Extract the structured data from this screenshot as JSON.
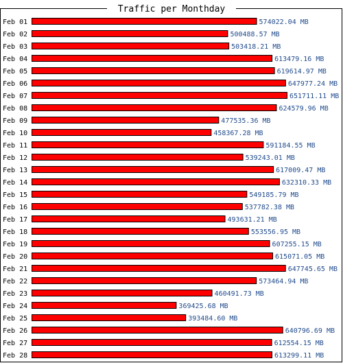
{
  "chart_data": {
    "type": "bar",
    "orientation": "horizontal",
    "title": "Traffic per Monthday",
    "unit": "MB",
    "categories": [
      "Feb 01",
      "Feb 02",
      "Feb 03",
      "Feb 04",
      "Feb 05",
      "Feb 06",
      "Feb 07",
      "Feb 08",
      "Feb 09",
      "Feb 10",
      "Feb 11",
      "Feb 12",
      "Feb 13",
      "Feb 14",
      "Feb 15",
      "Feb 16",
      "Feb 17",
      "Feb 18",
      "Feb 19",
      "Feb 20",
      "Feb 21",
      "Feb 22",
      "Feb 23",
      "Feb 24",
      "Feb 25",
      "Feb 26",
      "Feb 27",
      "Feb 28"
    ],
    "values": [
      574022.04,
      500488.57,
      503418.21,
      613479.16,
      619614.97,
      647977.24,
      651711.11,
      624579.96,
      477535.36,
      458367.28,
      591184.55,
      539243.01,
      617009.47,
      632310.33,
      549185.79,
      537782.38,
      493631.21,
      553556.95,
      607255.15,
      615071.05,
      647745.65,
      573464.94,
      460491.73,
      369425.68,
      393484.6,
      640796.69,
      612554.15,
      613299.11
    ],
    "value_labels": [
      "574022.04 MB",
      "500488.57 MB",
      "503418.21 MB",
      "613479.16 MB",
      "619614.97 MB",
      "647977.24 MB",
      "651711.11 MB",
      "624579.96 MB",
      "477535.36 MB",
      "458367.28 MB",
      "591184.55 MB",
      "539243.01 MB",
      "617009.47 MB",
      "632310.33 MB",
      "549185.79 MB",
      "537782.38 MB",
      "493631.21 MB",
      "553556.95 MB",
      "607255.15 MB",
      "615071.05 MB",
      "647745.65 MB",
      "573464.94 MB",
      "460491.73 MB",
      "369425.68 MB",
      "393484.60 MB",
      "640796.69 MB",
      "612554.15 MB",
      "613299.11 MB"
    ],
    "colors": {
      "bar": "#ff0000",
      "bar_border": "#000000",
      "value_text": "#1f4a8c",
      "frame": "#000000"
    },
    "grid": false,
    "legend": "none"
  }
}
